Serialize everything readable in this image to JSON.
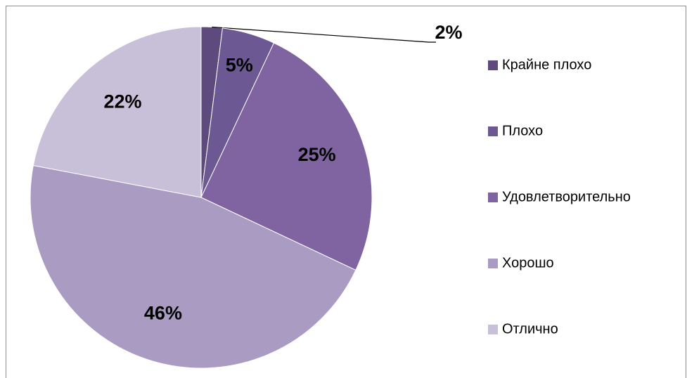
{
  "chart_data": {
    "type": "pie",
    "categories": [
      "Крайне плохо",
      "Плохо",
      "Удовлетворительно",
      "Хорошо",
      "Отлично"
    ],
    "values": [
      2,
      5,
      25,
      46,
      22
    ],
    "value_labels": [
      "2%",
      "5%",
      "25%",
      "46%",
      "22%"
    ],
    "colors": [
      "#5e4a7d",
      "#6c5993",
      "#8064a2",
      "#a99bc1",
      "#c8bfd9"
    ],
    "legend": "right"
  }
}
